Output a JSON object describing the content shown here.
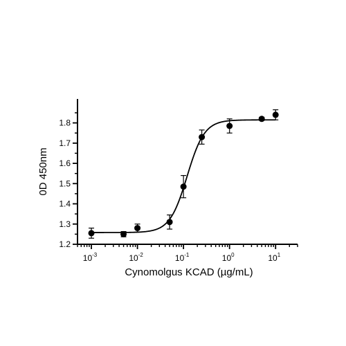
{
  "chart_data": {
    "type": "scatter",
    "title": "",
    "xlabel": "Cynomolgus KCAD (µg/mL)",
    "ylabel": "0D 450nm",
    "x_scale": "log",
    "x_range": [
      0.0005,
      30
    ],
    "y_range": [
      1.2,
      1.85
    ],
    "x_ticks": [
      {
        "value": 0.001,
        "base": "10",
        "exp": "-3"
      },
      {
        "value": 0.01,
        "base": "10",
        "exp": "-2"
      },
      {
        "value": 0.1,
        "base": "10",
        "exp": "-1"
      },
      {
        "value": 1,
        "base": "10",
        "exp": "0"
      },
      {
        "value": 10,
        "base": "10",
        "exp": "1"
      }
    ],
    "y_ticks": [
      "1.2",
      "1.3",
      "1.4",
      "1.5",
      "1.6",
      "1.7",
      "1.8"
    ],
    "grid": false,
    "legend": "none",
    "marker_color": "#000000",
    "series": [
      {
        "x": [
          0.001,
          0.005,
          0.01,
          0.05,
          0.1,
          0.25,
          1,
          5,
          10
        ],
        "y": [
          1.255,
          1.25,
          1.28,
          1.31,
          1.485,
          1.73,
          1.785,
          1.82,
          1.84
        ],
        "error": [
          0.025,
          0.013,
          0.02,
          0.035,
          0.055,
          0.035,
          0.035,
          0.008,
          0.025
        ]
      }
    ],
    "fit_curve": {
      "model": "4PL",
      "bottom": 1.258,
      "top": 1.815,
      "ec50": 0.12,
      "hill": 2.3
    }
  }
}
